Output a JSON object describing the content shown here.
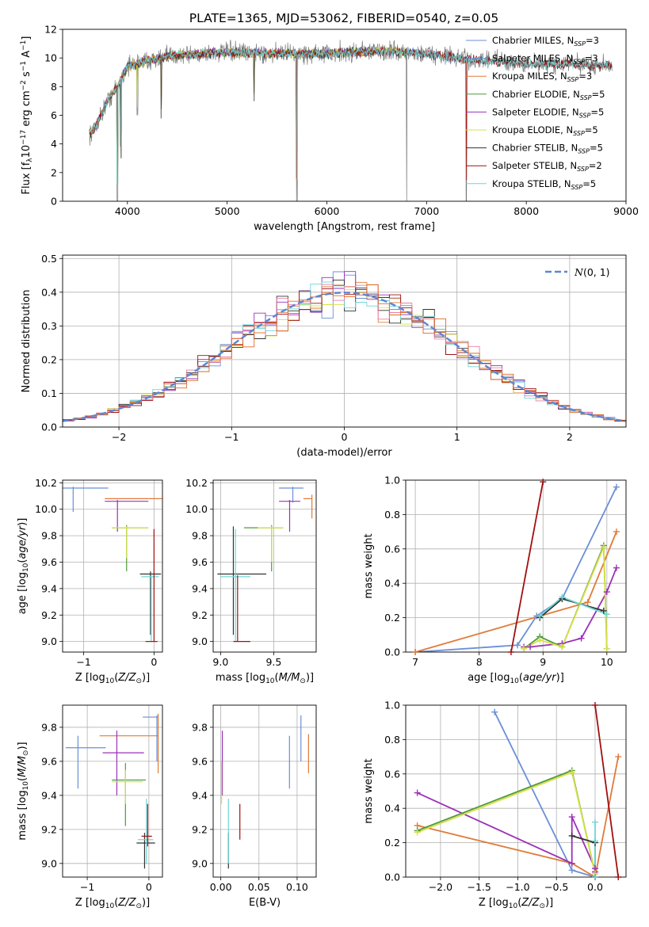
{
  "figure": {
    "title": "PLATE=1365, MJD=53062, FIBERID=0540, z=0.05"
  },
  "colors": {
    "Chabrier MILES": "#6b8fd6",
    "Salpeter MILES": "#6b8fd6",
    "Kroupa MILES": "#e07b39",
    "Chabrier ELODIE": "#4f9b3a",
    "Salpeter ELODIE": "#9b30b8",
    "Kroupa ELODIE": "#d8e04a",
    "Chabrier STELIB": "#333333",
    "Salpeter STELIB": "#a01010",
    "Kroupa STELIB": "#6fd6d6",
    "gaussian": "#5b86d6",
    "data": "#777777"
  },
  "chart_data": [
    {
      "type": "line",
      "id": "spectrum",
      "xlabel": "wavelength [Angstrom, rest frame]",
      "ylabel": "Flux [f_λ 10^-17 erg cm^-2 s^-1 A^-1]",
      "xlim": [
        3350,
        9000
      ],
      "ylim": [
        0,
        12
      ],
      "xticks": [
        4000,
        5000,
        6000,
        7000,
        8000,
        9000
      ],
      "yticks": [
        0,
        2,
        4,
        6,
        8,
        10,
        12
      ],
      "legend_position": "top-right",
      "legend": [
        {
          "name": "Chabrier MILES",
          "nssp": 3
        },
        {
          "name": "Salpeter MILES",
          "nssp": 3
        },
        {
          "name": "Kroupa MILES",
          "nssp": 3
        },
        {
          "name": "Chabrier ELODIE",
          "nssp": 5
        },
        {
          "name": "Salpeter ELODIE",
          "nssp": 5
        },
        {
          "name": "Kroupa ELODIE",
          "nssp": 5
        },
        {
          "name": "Chabrier STELIB",
          "nssp": 5
        },
        {
          "name": "Salpeter STELIB",
          "nssp": 2
        },
        {
          "name": "Kroupa STELIB",
          "nssp": 5
        }
      ],
      "continuum": {
        "x": [
          3650,
          3700,
          3800,
          3900,
          4000,
          4200,
          4500,
          5000,
          5500,
          6000,
          6500,
          7000,
          7400,
          8000,
          8800
        ],
        "y": [
          4.8,
          5.5,
          7.0,
          8.0,
          9.4,
          9.8,
          10.2,
          10.4,
          10.3,
          10.3,
          10.5,
          10.3,
          9.9,
          9.6,
          9.5
        ]
      },
      "data_range": [
        3620,
        8860
      ],
      "model_ranges": {
        "MILES": [
          3620,
          7400
        ],
        "ELODIE": [
          3620,
          6800
        ],
        "STELIB": [
          3620,
          8860
        ]
      },
      "dips": [
        {
          "x": 3900,
          "y": 0
        },
        {
          "x": 3935,
          "y": 3.0
        },
        {
          "x": 4100,
          "y": 6.0
        },
        {
          "x": 4340,
          "y": 5.8
        },
        {
          "x": 5270,
          "y": 7.0
        },
        {
          "x": 5700,
          "y": 0
        },
        {
          "x": 6800,
          "y": 0
        },
        {
          "x": 7400,
          "y": 0
        }
      ]
    },
    {
      "type": "line",
      "id": "residuals",
      "xlabel": "(data-model)/error",
      "ylabel": "Normed distribution",
      "xlim": [
        -2.5,
        2.5
      ],
      "ylim": [
        0,
        0.51
      ],
      "xticks": [
        -2,
        -1,
        0,
        1,
        2
      ],
      "yticks": [
        0.0,
        0.1,
        0.2,
        0.3,
        0.4,
        0.5
      ],
      "legend_position": "top-right",
      "gaussian_label": "N(0,1)",
      "bin_width": 0.1
    },
    {
      "type": "scatter",
      "id": "age-vs-Z",
      "xlabel": "Z [log10(Z/Z⊙)]",
      "ylabel": "age [log10(age/yr)]",
      "xlim": [
        -1.3,
        0.12
      ],
      "ylim": [
        8.92,
        10.22
      ],
      "xticks": [
        -1,
        0
      ],
      "yticks": [
        9.0,
        9.2,
        9.4,
        9.6,
        9.8,
        10.0,
        10.2
      ],
      "points": [
        {
          "model": "Chabrier MILES",
          "x": -1.15,
          "xl": -1.35,
          "xh": -0.65,
          "y": 10.16,
          "yl": 9.98,
          "yh": 10.17
        },
        {
          "model": "Kroupa MILES",
          "x": 0.15,
          "xl": -0.7,
          "xh": 0.15,
          "y": 10.08,
          "yl": 9.86,
          "yh": 10.11
        },
        {
          "model": "Salpeter ELODIE",
          "x": -0.52,
          "xl": -0.7,
          "xh": -0.08,
          "y": 10.06,
          "yl": 9.83,
          "yh": 10.07
        },
        {
          "model": "Chabrier ELODIE",
          "x": -0.39,
          "xl": -0.6,
          "xh": -0.08,
          "y": 9.86,
          "yl": 9.53,
          "yh": 9.88
        },
        {
          "model": "Kroupa ELODIE",
          "x": -0.39,
          "xl": -0.6,
          "xh": -0.08,
          "y": 9.86,
          "yl": 9.63,
          "yh": 9.87
        },
        {
          "model": "Chabrier STELIB",
          "x": -0.05,
          "xl": -0.2,
          "xh": 0.1,
          "y": 9.51,
          "yl": 9.05,
          "yh": 9.53
        },
        {
          "model": "Kroupa STELIB",
          "x": -0.04,
          "xl": -0.18,
          "xh": 0.07,
          "y": 9.49,
          "yl": 9.0,
          "yh": 9.5
        },
        {
          "model": "Salpeter STELIB",
          "x": 0.0,
          "xl": -0.12,
          "xh": 0.05,
          "y": 9.0,
          "yl": 9.0,
          "yh": 9.85
        }
      ]
    },
    {
      "type": "scatter",
      "id": "age-vs-mass",
      "xlabel": "mass [log10(M/M⊙)]",
      "ylabel": "",
      "xlim": [
        8.93,
        9.9
      ],
      "ylim": [
        8.92,
        10.22
      ],
      "xticks": [
        9.0,
        9.5
      ],
      "yticks": [
        9.0,
        9.2,
        9.4,
        9.6,
        9.8,
        10.0,
        10.2
      ],
      "points": [
        {
          "model": "Chabrier MILES",
          "x": 9.68,
          "xl": 9.55,
          "xh": 9.78,
          "y": 10.16,
          "yl": 10.05,
          "yh": 10.17
        },
        {
          "model": "Kroupa MILES",
          "x": 9.86,
          "xl": 9.78,
          "xh": 9.86,
          "y": 10.08,
          "yl": 9.93,
          "yh": 10.11
        },
        {
          "model": "Salpeter ELODIE",
          "x": 9.65,
          "xl": 9.55,
          "xh": 9.75,
          "y": 10.06,
          "yl": 9.83,
          "yh": 10.07
        },
        {
          "model": "Chabrier ELODIE",
          "x": 9.48,
          "xl": 9.22,
          "xh": 9.59,
          "y": 9.86,
          "yl": 9.53,
          "yh": 9.88
        },
        {
          "model": "Kroupa ELODIE",
          "x": 9.48,
          "xl": 9.35,
          "xh": 9.59,
          "y": 9.86,
          "yl": 9.6,
          "yh": 9.87
        },
        {
          "model": "Chabrier STELIB",
          "x": 9.12,
          "xl": 8.97,
          "xh": 9.43,
          "y": 9.51,
          "yl": 9.05,
          "yh": 9.87
        },
        {
          "model": "Kroupa STELIB",
          "x": 9.14,
          "xl": 9.0,
          "xh": 9.28,
          "y": 9.49,
          "yl": 9.0,
          "yh": 9.85
        },
        {
          "model": "Salpeter STELIB",
          "x": 9.16,
          "xl": 9.12,
          "xh": 9.28,
          "y": 9.0,
          "yl": 9.0,
          "yh": 9.5
        }
      ]
    },
    {
      "type": "line",
      "id": "mass-weight-vs-age",
      "xlabel": "age [log10(age/yr)]",
      "ylabel": "mass weight",
      "xlim": [
        6.85,
        10.3
      ],
      "ylim": [
        0,
        1
      ],
      "xticks": [
        7,
        8,
        9,
        10
      ],
      "yticks": [
        0.0,
        0.2,
        0.4,
        0.6,
        0.8,
        1.0
      ],
      "series": [
        {
          "model": "Chabrier MILES",
          "x": [
            7.0,
            8.6,
            8.9,
            9.3,
            10.15
          ],
          "y": [
            0.0,
            0.04,
            0.21,
            0.31,
            0.96
          ]
        },
        {
          "model": "Kroupa MILES",
          "x": [
            7.0,
            9.7,
            10.15
          ],
          "y": [
            0.0,
            0.29,
            0.7
          ]
        },
        {
          "model": "Salpeter ELODIE",
          "x": [
            8.7,
            8.8,
            9.3,
            9.6,
            10.0,
            10.15
          ],
          "y": [
            0.03,
            0.03,
            0.05,
            0.08,
            0.35,
            0.49
          ]
        },
        {
          "model": "Chabrier ELODIE",
          "x": [
            8.7,
            8.95,
            9.3,
            9.95,
            10.0
          ],
          "y": [
            0.02,
            0.09,
            0.03,
            0.62,
            0.02
          ]
        },
        {
          "model": "Kroupa ELODIE",
          "x": [
            8.7,
            8.95,
            9.3,
            9.95,
            10.0
          ],
          "y": [
            0.02,
            0.07,
            0.03,
            0.61,
            0.02
          ]
        },
        {
          "model": "Chabrier STELIB",
          "x": [
            8.95,
            9.3,
            9.95
          ],
          "y": [
            0.2,
            0.31,
            0.24
          ]
        },
        {
          "model": "Kroupa STELIB",
          "x": [
            8.95,
            9.3,
            10.0
          ],
          "y": [
            0.21,
            0.32,
            0.22
          ]
        },
        {
          "model": "Salpeter STELIB",
          "x": [
            8.5,
            9.0
          ],
          "y": [
            0.0,
            0.99
          ]
        }
      ]
    },
    {
      "type": "scatter",
      "id": "mass-vs-Z",
      "xlabel": "Z [log10(Z/Z⊙)]",
      "ylabel": "mass [log10(M/M⊙)]",
      "xlim": [
        -1.4,
        0.22
      ],
      "ylim": [
        8.92,
        9.93
      ],
      "xticks": [
        -1,
        0
      ],
      "yticks": [
        9.0,
        9.2,
        9.4,
        9.6,
        9.8
      ],
      "points": [
        {
          "model": "Chabrier MILES",
          "x": -1.15,
          "xl": -1.35,
          "xh": -0.7,
          "y": 9.68,
          "yl": 9.44,
          "yh": 9.75
        },
        {
          "model": "Kroupa MILES",
          "x": 0.15,
          "xl": -0.8,
          "xh": 0.15,
          "y": 9.75,
          "yl": 9.53,
          "yh": 9.88
        },
        {
          "model": "Salpeter ELODIE",
          "x": -0.52,
          "xl": -0.75,
          "xh": -0.08,
          "y": 9.65,
          "yl": 9.4,
          "yh": 9.78
        },
        {
          "model": "Chabrier ELODIE",
          "x": -0.38,
          "xl": -0.6,
          "xh": -0.05,
          "y": 9.49,
          "yl": 9.22,
          "yh": 9.59
        },
        {
          "model": "Kroupa ELODIE",
          "x": -0.38,
          "xl": -0.6,
          "xh": -0.1,
          "y": 9.48,
          "yl": 9.35,
          "yh": 9.55
        },
        {
          "model": "Chabrier STELIB",
          "x": -0.07,
          "xl": -0.2,
          "xh": 0.1,
          "y": 9.12,
          "yl": 8.97,
          "yh": 9.18
        },
        {
          "model": "Kroupa STELIB",
          "x": -0.04,
          "xl": -0.18,
          "xh": 0.07,
          "y": 9.14,
          "yl": 9.0,
          "yh": 9.38
        },
        {
          "model": "Salpeter STELIB",
          "x": -0.02,
          "xl": -0.12,
          "xh": 0.05,
          "y": 9.16,
          "yl": 9.1,
          "yh": 9.35
        },
        {
          "model": "Salpeter MILES",
          "x": 0.13,
          "xl": -0.1,
          "xh": 0.15,
          "y": 9.86,
          "yl": 9.6,
          "yh": 9.87
        }
      ]
    },
    {
      "type": "scatter",
      "id": "mass-vs-EBV",
      "xlabel": "E(B-V)",
      "ylabel": "",
      "xlim": [
        -0.01,
        0.125
      ],
      "ylim": [
        8.92,
        9.93
      ],
      "xticks": [
        0.0,
        0.05,
        0.1
      ],
      "yticks": [
        9.0,
        9.2,
        9.4,
        9.6,
        9.8
      ],
      "points": [
        {
          "model": "Chabrier MILES",
          "x": 0.09,
          "y": 9.68,
          "yl": 9.44,
          "yh": 9.75
        },
        {
          "model": "Kroupa MILES",
          "x": 0.115,
          "y": 9.75,
          "yl": 9.53,
          "yh": 9.76
        },
        {
          "model": "Salpeter MILES",
          "x": 0.105,
          "y": 9.86,
          "yl": 9.6,
          "yh": 9.87
        },
        {
          "model": "Salpeter ELODIE",
          "x": 0.002,
          "y": 9.65,
          "yl": 9.4,
          "yh": 9.78
        },
        {
          "model": "Kroupa ELODIE",
          "x": 0.001,
          "y": 9.48,
          "yl": 9.35,
          "yh": 9.6
        },
        {
          "model": "Chabrier STELIB",
          "x": 0.01,
          "y": 9.12,
          "yl": 8.97,
          "yh": 9.18
        },
        {
          "model": "Kroupa STELIB",
          "x": 0.01,
          "y": 9.14,
          "yl": 9.0,
          "yh": 9.38
        },
        {
          "model": "Salpeter STELIB",
          "x": 0.025,
          "y": 9.16,
          "yl": 9.14,
          "yh": 9.35
        }
      ]
    },
    {
      "type": "line",
      "id": "mass-weight-vs-Z",
      "xlabel": "Z [log10(Z/Z⊙)]",
      "ylabel": "mass weight",
      "xlim": [
        -2.45,
        0.4
      ],
      "ylim": [
        0,
        1
      ],
      "xticks": [
        -2.0,
        -1.5,
        -1.0,
        -0.5,
        0.0
      ],
      "yticks": [
        0.0,
        0.2,
        0.4,
        0.6,
        0.8,
        1.0
      ],
      "series": [
        {
          "model": "Chabrier MILES",
          "x": [
            -1.3,
            -0.3,
            0.0
          ],
          "y": [
            0.96,
            0.04,
            0.0
          ]
        },
        {
          "model": "Kroupa MILES",
          "x": [
            -2.3,
            -0.3,
            0.0,
            0.3
          ],
          "y": [
            0.3,
            0.08,
            0.0,
            0.7
          ]
        },
        {
          "model": "Salpeter ELODIE",
          "x": [
            -2.3,
            -0.3,
            -0.3,
            0.0,
            0.0
          ],
          "y": [
            0.49,
            0.08,
            0.35,
            0.05,
            0.03
          ]
        },
        {
          "model": "Chabrier ELODIE",
          "x": [
            -2.3,
            -0.3,
            0.0
          ],
          "y": [
            0.27,
            0.62,
            0.02
          ]
        },
        {
          "model": "Kroupa ELODIE",
          "x": [
            -2.3,
            -0.3,
            0.0
          ],
          "y": [
            0.26,
            0.61,
            0.02
          ]
        },
        {
          "model": "Chabrier STELIB",
          "x": [
            -0.3,
            0.0,
            0.0
          ],
          "y": [
            0.24,
            0.2,
            0.0
          ]
        },
        {
          "model": "Kroupa STELIB",
          "x": [
            0.0,
            0.0,
            0.0
          ],
          "y": [
            0.32,
            0.21,
            0.0
          ]
        },
        {
          "model": "Salpeter STELIB",
          "x": [
            0.0,
            0.3
          ],
          "y": [
            1.0,
            0.0
          ]
        }
      ]
    }
  ]
}
